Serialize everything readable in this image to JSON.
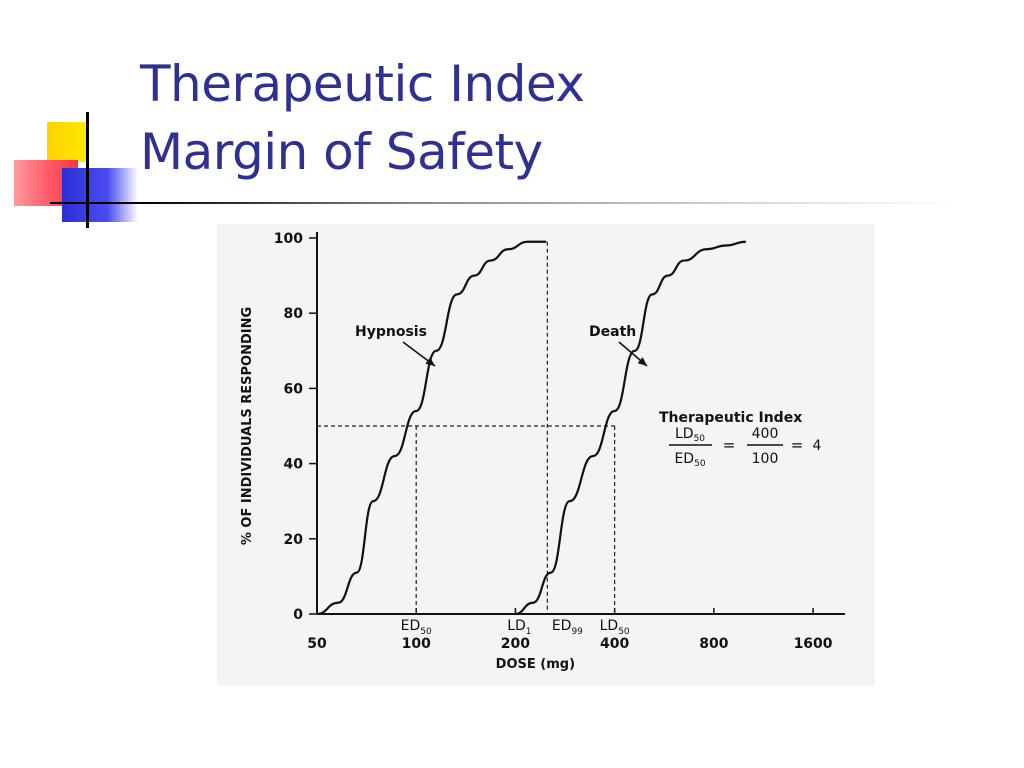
{
  "slide": {
    "title_line1": "Therapeutic Index",
    "title_line2": "Margin of Safety",
    "title_color": "#2e3192"
  },
  "chart_data": {
    "type": "line",
    "xlabel": "DOSE (mg)",
    "ylabel": "% OF INDIVIDUALS RESPONDING",
    "x_scale": "log2",
    "xlim": [
      50,
      2000
    ],
    "ylim": [
      0,
      100
    ],
    "x_ticks": [
      "50",
      "100",
      "200",
      "400",
      "800",
      "1600"
    ],
    "y_ticks": [
      "0",
      "20",
      "40",
      "60",
      "80",
      "100"
    ],
    "series": [
      {
        "name": "Hypnosis",
        "x": [
          50,
          58,
          66,
          74,
          86,
          100,
          115,
          133,
          150,
          168,
          190,
          218,
          248
        ],
        "y": [
          0,
          3,
          11,
          30,
          42,
          54,
          70,
          85,
          90,
          94,
          97,
          99,
          99
        ]
      },
      {
        "name": "Death",
        "x": [
          200,
          226,
          256,
          292,
          344,
          400,
          460,
          520,
          580,
          650,
          760,
          870,
          1000
        ],
        "y": [
          0,
          3,
          11,
          30,
          42,
          54,
          70,
          85,
          90,
          94,
          97,
          98,
          99
        ]
      }
    ],
    "reference_lines": {
      "y50": 50,
      "ED50_x": 100,
      "LD50_x": 400,
      "LD1_x": 250
    },
    "annotations": {
      "ed50": "ED",
      "ed50_sub": "50",
      "ld1": "LD",
      "ld1_sub": "1",
      "ed99": "ED",
      "ed99_sub": "99",
      "ld50": "LD",
      "ld50_sub": "50"
    },
    "ti_box": {
      "title": "Therapeutic Index",
      "num1": "LD",
      "num1_sub": "50",
      "den1": "ED",
      "den1_sub": "50",
      "eq1": "=",
      "num2": "400",
      "den2": "100",
      "eq2": "=",
      "result": "4"
    }
  }
}
